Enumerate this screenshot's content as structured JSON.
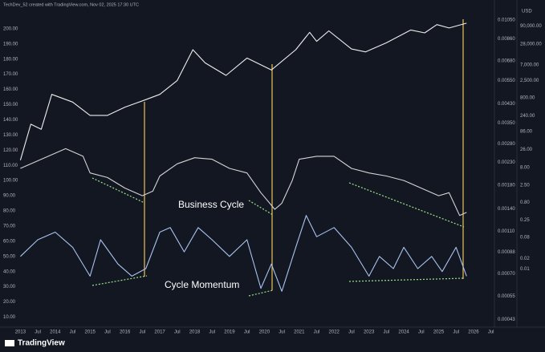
{
  "chart_data": {
    "type": "line",
    "credit": "TechDev_52 created with TradingView.com, Nov 02, 2025 17:30 UTC",
    "brand": "TradingView",
    "y2_unit": "USD",
    "annotations": [
      "Business Cycle",
      "Cycle Momentum"
    ],
    "xlim": [
      2012.6,
      2026.6
    ],
    "xticks": [
      2013,
      {
        "value": 2013.5,
        "label": "Jul"
      },
      2014,
      {
        "value": 2014.5,
        "label": "Jul"
      },
      2015,
      {
        "value": 2015.5,
        "label": "Jul"
      },
      2016,
      {
        "value": 2016.5,
        "label": "Jul"
      },
      2017,
      {
        "value": 2017.5,
        "label": "Jul"
      },
      2018,
      {
        "value": 2018.5,
        "label": "Jul"
      },
      2019,
      {
        "value": 2019.5,
        "label": "Jul"
      },
      2020,
      {
        "value": 2020.5,
        "label": "Jul"
      },
      2021,
      {
        "value": 2021.5,
        "label": "Jul"
      },
      2022,
      {
        "value": 2022.5,
        "label": "Jul"
      },
      2023,
      {
        "value": 2023.5,
        "label": "Jul"
      },
      2024,
      {
        "value": 2024.5,
        "label": "Jul"
      },
      2025,
      {
        "value": 2025.5,
        "label": "Jul"
      },
      2026,
      {
        "value": 2026.5,
        "label": "Jul"
      }
    ],
    "ylim": [
      5,
      211
    ],
    "yticks": [
      {
        "value": 200,
        "label": "200.00"
      },
      {
        "value": 190,
        "label": "190.00"
      },
      {
        "value": 180,
        "label": "180.00"
      },
      {
        "value": 170,
        "label": "170.00"
      },
      {
        "value": 160,
        "label": "160.00"
      },
      {
        "value": 150,
        "label": "150.00"
      },
      {
        "value": 140,
        "label": "140.00"
      },
      {
        "value": 130,
        "label": "130.00"
      },
      {
        "value": 120,
        "label": "120.00"
      },
      {
        "value": 110,
        "label": "110.00"
      },
      {
        "value": 100,
        "label": "100.00"
      },
      {
        "value": 90,
        "label": "90.00"
      },
      {
        "value": 80,
        "label": "80.00"
      },
      {
        "value": 70,
        "label": "70.00"
      },
      {
        "value": 60,
        "label": "60.00"
      },
      {
        "value": 50,
        "label": "50.00"
      },
      {
        "value": 40,
        "label": "40.00"
      },
      {
        "value": 30,
        "label": "30.00"
      },
      {
        "value": 20,
        "label": "20.00"
      },
      {
        "value": 10,
        "label": "10.00"
      }
    ],
    "y2lim": [
      0.00025,
      229000
    ],
    "y2log": true,
    "y2ticks": [
      {
        "value": 90000,
        "label": "90,000.00"
      },
      {
        "value": 28000,
        "label": "28,000.00"
      },
      {
        "value": 7000,
        "label": "7,000.00"
      },
      {
        "value": 2500,
        "label": "2,500.00"
      },
      {
        "value": 800,
        "label": "800.00"
      },
      {
        "value": 240,
        "label": "240.00"
      },
      {
        "value": 86,
        "label": "86.00"
      },
      {
        "value": 26,
        "label": "26.00"
      },
      {
        "value": 8,
        "label": "8.00"
      },
      {
        "value": 2.5,
        "label": "2.50"
      },
      {
        "value": 0.8,
        "label": "0.80"
      },
      {
        "value": 0.25,
        "label": "0.25"
      },
      {
        "value": 0.08,
        "label": "0.08"
      },
      {
        "value": 0.02,
        "label": "0.02"
      },
      {
        "value": 0.01,
        "label": "0.01"
      }
    ],
    "y3lim": [
      0.000406,
      0.01143
    ],
    "y3log": true,
    "y3ticks": [
      {
        "value": 0.0105,
        "label": "0.01050"
      },
      {
        "value": 0.0086,
        "label": "0.00860"
      },
      {
        "value": 0.0068,
        "label": "0.00680"
      },
      {
        "value": 0.0055,
        "label": "0.00550"
      },
      {
        "value": 0.0043,
        "label": "0.00430"
      },
      {
        "value": 0.0035,
        "label": "0.00350"
      },
      {
        "value": 0.0028,
        "label": "0.00280"
      },
      {
        "value": 0.0023,
        "label": "0.00230"
      },
      {
        "value": 0.0018,
        "label": "0.00180"
      },
      {
        "value": 0.0014,
        "label": "0.00140"
      },
      {
        "value": 0.0011,
        "label": "0.00110"
      },
      {
        "value": 0.00088,
        "label": "0.00088"
      },
      {
        "value": 0.0007,
        "label": "0.00070"
      },
      {
        "value": 0.00055,
        "label": "0.00055"
      },
      {
        "value": 0.00043,
        "label": "0.00043"
      }
    ],
    "grid": false,
    "series": [
      {
        "color": "#eeeeee",
        "axis": "y2",
        "x": [
          2013.0,
          2013.3,
          2013.6,
          2013.9,
          2014.5,
          2015.0,
          2015.5,
          2016.0,
          2016.5,
          2017.0,
          2017.5,
          2017.95,
          2018.3,
          2018.9,
          2019.5,
          2020.2,
          2020.9,
          2021.3,
          2021.5,
          2021.85,
          2022.5,
          2022.9,
          2023.5,
          2024.2,
          2024.6,
          2024.95,
          2025.3,
          2025.8
        ],
        "values": [
          13,
          140,
          100,
          1000,
          600,
          250,
          250,
          430,
          650,
          1000,
          2500,
          19000,
          8000,
          3500,
          11000,
          5000,
          19000,
          60000,
          33000,
          66000,
          20000,
          16500,
          30000,
          70000,
          58000,
          100000,
          80000,
          110000
        ]
      },
      {
        "color": "#d4d4d4",
        "x": [
          2013.0,
          2014.3,
          2014.8,
          2015.0,
          2015.5,
          2016.0,
          2016.5,
          2016.8,
          2017.0,
          2017.5,
          2018.0,
          2018.5,
          2019.0,
          2019.5,
          2019.9,
          2020.3,
          2020.5,
          2020.8,
          2021.0,
          2021.5,
          2022.0,
          2022.5,
          2023.0,
          2023.5,
          2024.0,
          2024.5,
          2025.0,
          2025.3,
          2025.6,
          2025.8
        ],
        "values": [
          108,
          121,
          116,
          105,
          102,
          95,
          90,
          93,
          103,
          111,
          115,
          114,
          108,
          105,
          92,
          81,
          85,
          100,
          114,
          116,
          116,
          108,
          105,
          103,
          100,
          95,
          90,
          92,
          77,
          79
        ]
      },
      {
        "color": "#a9c3ee",
        "x": [
          2013.0,
          2013.5,
          2014.0,
          2014.5,
          2015.0,
          2015.3,
          2015.8,
          2016.2,
          2016.6,
          2017.0,
          2017.3,
          2017.7,
          2018.1,
          2018.5,
          2019.0,
          2019.5,
          2019.9,
          2020.2,
          2020.5,
          2020.9,
          2021.2,
          2021.5,
          2022.0,
          2022.5,
          2023.0,
          2023.3,
          2023.7,
          2024.0,
          2024.4,
          2024.8,
          2025.1,
          2025.5,
          2025.8
        ],
        "values": [
          50,
          61,
          66,
          56,
          37,
          61,
          45,
          37,
          42,
          66,
          69,
          53,
          69,
          61,
          50,
          61,
          29,
          45,
          27,
          56,
          77,
          63,
          69,
          56,
          37,
          50,
          42,
          56,
          42,
          50,
          40,
          56,
          37
        ]
      }
    ]
  }
}
